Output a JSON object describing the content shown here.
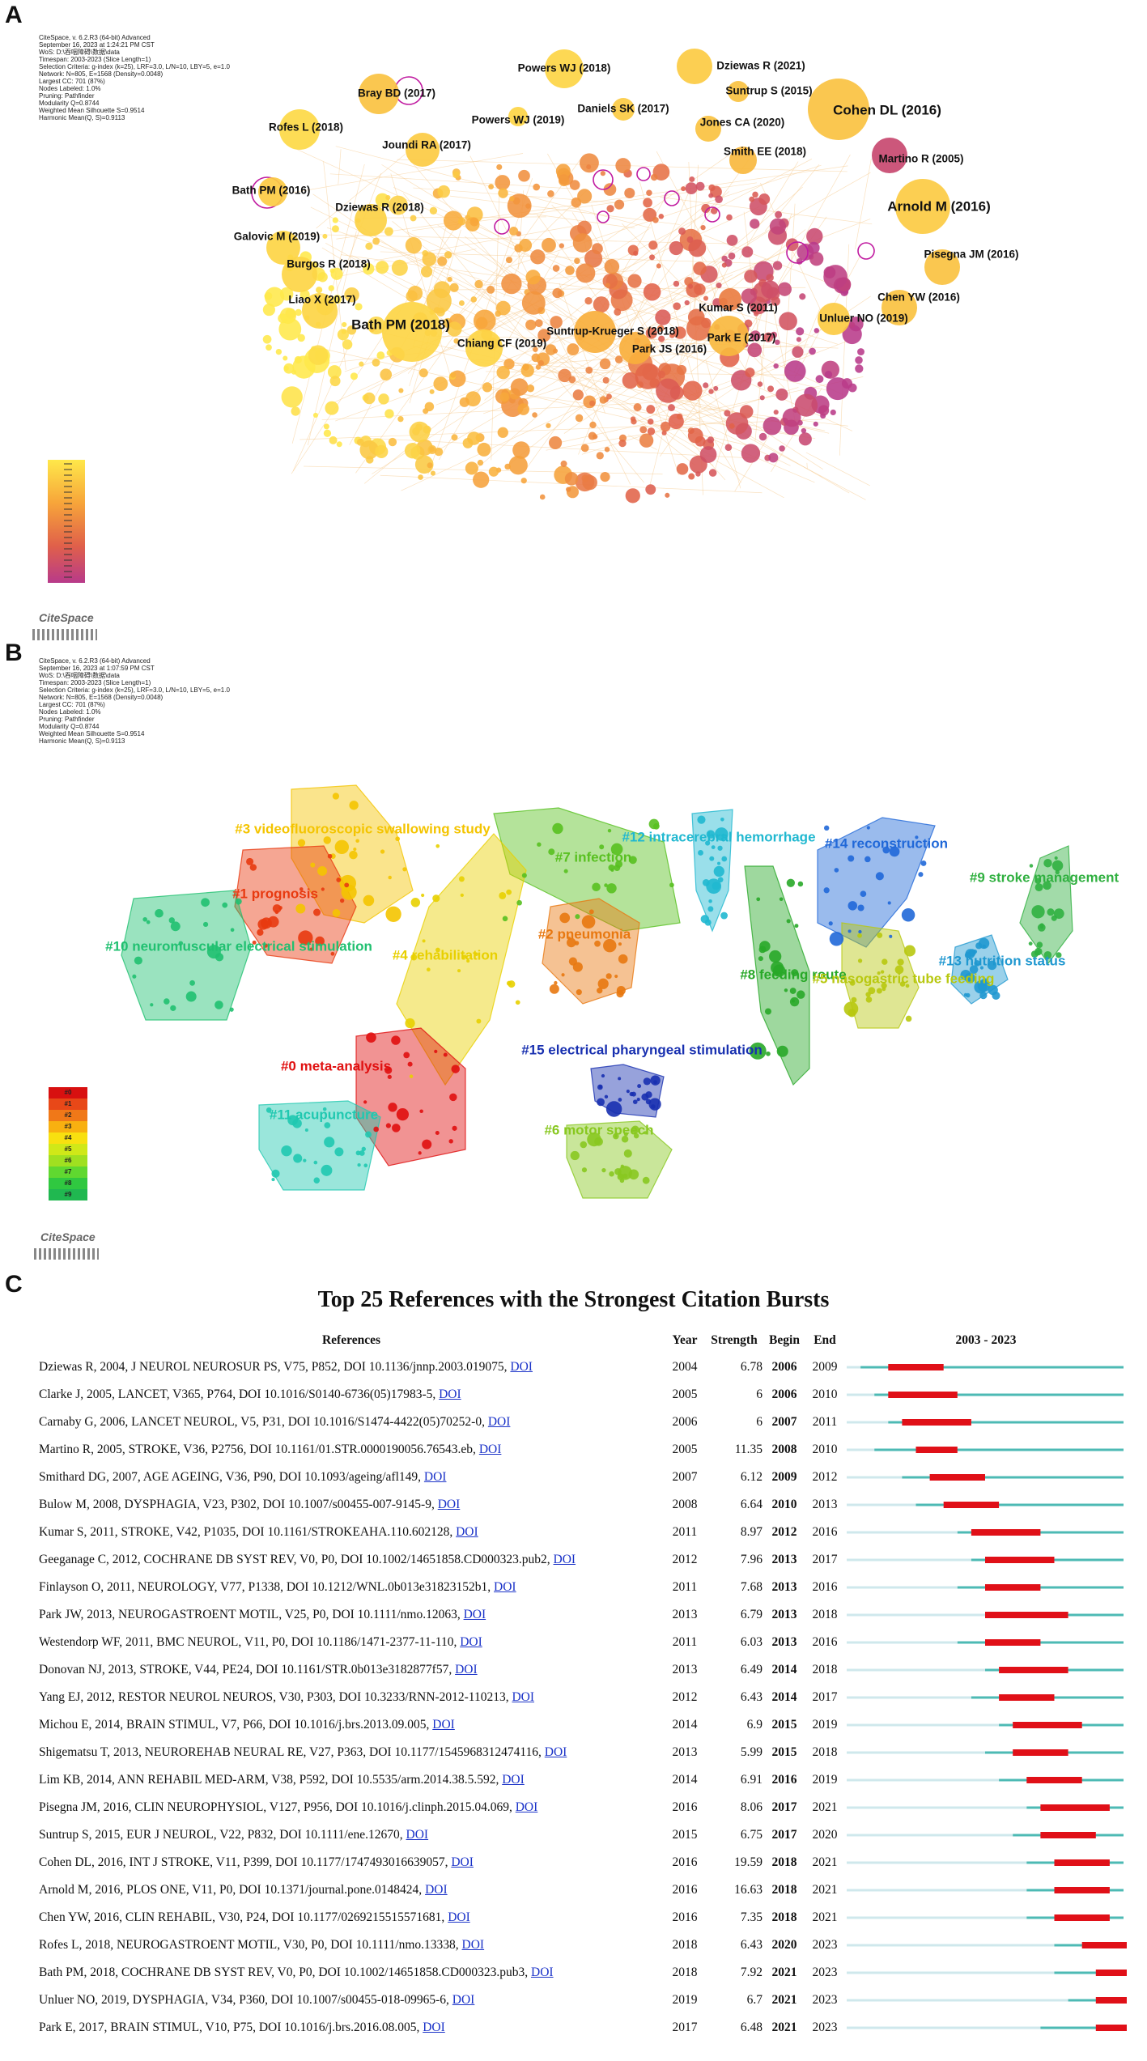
{
  "panel_a": {
    "letter": "A",
    "meta": [
      "CiteSpace, v. 6.2.R3 (64-bit) Advanced",
      "September 16, 2023 at 1:24:21 PM CST",
      "WoS: D:\\吞咽障碍\\数据\\data",
      "Timespan: 2003-2023 (Slice Length=1)",
      "Selection Criteria: g-index (k=25), LRF=3.0, L/N=10, LBY=5, e=1.0",
      "Network: N=805, E=1568 (Density=0.0048)",
      "Largest CC: 701 (87%)",
      "Nodes Labeled: 1.0%",
      "Pruning: Pathfinder",
      "Modularity Q=0.8744",
      "Weighted Mean Silhouette S=0.9514",
      "Harmonic Mean(Q, S)=0.9113"
    ],
    "logo": "CiteSpace",
    "gradient_colors": [
      "#ffe84a",
      "#f7a53a",
      "#e0604a",
      "#b83a8a"
    ],
    "labels": [
      {
        "text": "Dziewas R (2021)",
        "big": false
      },
      {
        "text": "Powers WJ (2018)",
        "big": false
      },
      {
        "text": "Bray BD (2017)",
        "big": false
      },
      {
        "text": "Suntrup S (2015)",
        "big": false
      },
      {
        "text": "Cohen DL (2016)",
        "big": true
      },
      {
        "text": "Daniels SK (2017)",
        "big": false
      },
      {
        "text": "Powers WJ (2019)",
        "big": false
      },
      {
        "text": "Jones CA (2020)",
        "big": false
      },
      {
        "text": "Rofes L (2018)",
        "big": false
      },
      {
        "text": "Joundi RA (2017)",
        "big": false
      },
      {
        "text": "Smith EE (2018)",
        "big": false
      },
      {
        "text": "Martino R (2005)",
        "big": false
      },
      {
        "text": "Bath PM (2016)",
        "big": false
      },
      {
        "text": "Arnold M (2016)",
        "big": true
      },
      {
        "text": "Dziewas R (2018)",
        "big": false
      },
      {
        "text": "Galovic M (2019)",
        "big": false
      },
      {
        "text": "Pisegna JM (2016)",
        "big": false
      },
      {
        "text": "Burgos R (2018)",
        "big": false
      },
      {
        "text": "Liao X (2017)",
        "big": false
      },
      {
        "text": "Chen YW (2016)",
        "big": false
      },
      {
        "text": "Kumar S (2011)",
        "big": false
      },
      {
        "text": "Unluer NO (2019)",
        "big": false
      },
      {
        "text": "Bath PM (2018)",
        "big": true
      },
      {
        "text": "Suntrup-Krueger S (2018)",
        "big": false
      },
      {
        "text": "Park E (2017)",
        "big": false
      },
      {
        "text": "Chiang CF (2019)",
        "big": false
      },
      {
        "text": "Park JS (2016)",
        "big": false
      }
    ]
  },
  "panel_b": {
    "letter": "B",
    "meta": [
      "CiteSpace, v. 6.2.R3 (64-bit) Advanced",
      "September 16, 2023 at 1:07:59 PM CST",
      "WoS: D:\\吞咽障碍\\数据\\data",
      "Timespan: 2003-2023 (Slice Length=1)",
      "Selection Criteria: g-index (k=25), LRF=3.0, L/N=10, LBY=5, e=1.0",
      "Network: N=805, E=1568 (Density=0.0048)",
      "Largest CC: 701 (87%)",
      "Nodes Labeled: 1.0%",
      "Pruning: Pathfinder",
      "Modularity Q=0.8744",
      "Weighted Mean Silhouette S=0.9514",
      "Harmonic Mean(Q, S)=0.9113"
    ],
    "logo": "CiteSpace",
    "clusters": [
      {
        "label": "#3 videofluoroscopic swallowing study",
        "color": "#f4c400"
      },
      {
        "label": "#1 prognosis",
        "color": "#e83a10"
      },
      {
        "label": "#10 neuromuscular electrical stimulation",
        "color": "#20c070"
      },
      {
        "label": "#7 infection",
        "color": "#58c020"
      },
      {
        "label": "#12 intracerebral hemorrhage",
        "color": "#20b8d0"
      },
      {
        "label": "#14 reconstruction",
        "color": "#2068d8"
      },
      {
        "label": "#9 stroke management",
        "color": "#30b040"
      },
      {
        "label": "#4 rehabilitation",
        "color": "#e8d000"
      },
      {
        "label": "#2 pneumonia",
        "color": "#e87810"
      },
      {
        "label": "#8 feeding route",
        "color": "#28a828"
      },
      {
        "label": "#5 nasogastric tube feeding",
        "color": "#b8c810"
      },
      {
        "label": "#13 nutrition status",
        "color": "#2098d0"
      },
      {
        "label": "#15 electrical pharyngeal stimulation",
        "color": "#1830b0"
      },
      {
        "label": "#0 meta-analysis",
        "color": "#e01010"
      },
      {
        "label": "#11 acupuncture",
        "color": "#20c8b0"
      },
      {
        "label": "#6 motor speech",
        "color": "#88c820"
      }
    ],
    "legend_labels": [
      "#0",
      "#1",
      "#2",
      "#3",
      "#4",
      "#5",
      "#6",
      "#7",
      "#8",
      "#9"
    ],
    "legend_colors": [
      "#d81010",
      "#e84818",
      "#f07818",
      "#f8b010",
      "#f8e010",
      "#d0e818",
      "#a0e020",
      "#60d830",
      "#30c840",
      "#20b850"
    ]
  },
  "panel_c": {
    "letter": "C",
    "title": "Top 25 References with the Strongest Citation Bursts",
    "headers": {
      "ref": "References",
      "year": "Year",
      "strength": "Strength",
      "begin": "Begin",
      "end": "End",
      "range": "2003 - 2023"
    },
    "doi_label": "DOI",
    "colors": {
      "base": "#4dbab4",
      "burst": "#e01018",
      "pre": "#cfe8ec"
    },
    "chart_data": {
      "type": "table",
      "title": "Top 25 References with the Strongest Citation Bursts",
      "timeline_start": 2003,
      "timeline_end": 2023,
      "rows": [
        {
          "ref": "Dziewas R, 2004, J NEUROL NEUROSUR PS, V75, P852, DOI 10.1136/jnnp.2003.019075,",
          "year": "2004",
          "strength": "6.78",
          "begin": "2006",
          "end": "2009"
        },
        {
          "ref": "Clarke J, 2005, LANCET, V365, P764, DOI 10.1016/S0140-6736(05)17983-5,",
          "year": "2005",
          "strength": "6",
          "begin": "2006",
          "end": "2010"
        },
        {
          "ref": "Carnaby G, 2006, LANCET NEUROL, V5, P31, DOI 10.1016/S1474-4422(05)70252-0,",
          "year": "2006",
          "strength": "6",
          "begin": "2007",
          "end": "2011"
        },
        {
          "ref": "Martino R, 2005, STROKE, V36, P2756, DOI 10.1161/01.STR.0000190056.76543.eb,",
          "year": "2005",
          "strength": "11.35",
          "begin": "2008",
          "end": "2010"
        },
        {
          "ref": "Smithard DG, 2007, AGE AGEING, V36, P90, DOI 10.1093/ageing/afl149,",
          "year": "2007",
          "strength": "6.12",
          "begin": "2009",
          "end": "2012"
        },
        {
          "ref": "Bulow M, 2008, DYSPHAGIA, V23, P302, DOI 10.1007/s00455-007-9145-9,",
          "year": "2008",
          "strength": "6.64",
          "begin": "2010",
          "end": "2013"
        },
        {
          "ref": "Kumar S, 2011, STROKE, V42, P1035, DOI 10.1161/STROKEAHA.110.602128,",
          "year": "2011",
          "strength": "8.97",
          "begin": "2012",
          "end": "2016"
        },
        {
          "ref": "Geeganage C, 2012, COCHRANE DB SYST REV, V0, P0, DOI 10.1002/14651858.CD000323.pub2,",
          "year": "2012",
          "strength": "7.96",
          "begin": "2013",
          "end": "2017"
        },
        {
          "ref": "Finlayson O, 2011, NEUROLOGY, V77, P1338, DOI 10.1212/WNL.0b013e31823152b1,",
          "year": "2011",
          "strength": "7.68",
          "begin": "2013",
          "end": "2016"
        },
        {
          "ref": "Park JW, 2013, NEUROGASTROENT MOTIL, V25, P0, DOI 10.1111/nmo.12063,",
          "year": "2013",
          "strength": "6.79",
          "begin": "2013",
          "end": "2018"
        },
        {
          "ref": "Westendorp WF, 2011, BMC NEUROL, V11, P0, DOI 10.1186/1471-2377-11-110,",
          "year": "2011",
          "strength": "6.03",
          "begin": "2013",
          "end": "2016"
        },
        {
          "ref": "Donovan NJ, 2013, STROKE, V44, PE24, DOI 10.1161/STR.0b013e3182877f57,",
          "year": "2013",
          "strength": "6.49",
          "begin": "2014",
          "end": "2018"
        },
        {
          "ref": "Yang EJ, 2012, RESTOR NEUROL NEUROS, V30, P303, DOI 10.3233/RNN-2012-110213,",
          "year": "2012",
          "strength": "6.43",
          "begin": "2014",
          "end": "2017"
        },
        {
          "ref": "Michou E, 2014, BRAIN STIMUL, V7, P66, DOI 10.1016/j.brs.2013.09.005,",
          "year": "2014",
          "strength": "6.9",
          "begin": "2015",
          "end": "2019"
        },
        {
          "ref": "Shigematsu T, 2013, NEUROREHAB NEURAL RE, V27, P363, DOI 10.1177/1545968312474116,",
          "year": "2013",
          "strength": "5.99",
          "begin": "2015",
          "end": "2018"
        },
        {
          "ref": "Lim KB, 2014, ANN REHABIL MED-ARM, V38, P592, DOI 10.5535/arm.2014.38.5.592,",
          "year": "2014",
          "strength": "6.91",
          "begin": "2016",
          "end": "2019"
        },
        {
          "ref": "Pisegna JM, 2016, CLIN NEUROPHYSIOL, V127, P956, DOI 10.1016/j.clinph.2015.04.069,",
          "year": "2016",
          "strength": "8.06",
          "begin": "2017",
          "end": "2021"
        },
        {
          "ref": "Suntrup S, 2015, EUR J NEUROL, V22, P832, DOI 10.1111/ene.12670,",
          "year": "2015",
          "strength": "6.75",
          "begin": "2017",
          "end": "2020"
        },
        {
          "ref": "Cohen DL, 2016, INT J STROKE, V11, P399, DOI 10.1177/1747493016639057,",
          "year": "2016",
          "strength": "19.59",
          "begin": "2018",
          "end": "2021"
        },
        {
          "ref": "Arnold M, 2016, PLOS ONE, V11, P0, DOI 10.1371/journal.pone.0148424,",
          "year": "2016",
          "strength": "16.63",
          "begin": "2018",
          "end": "2021"
        },
        {
          "ref": "Chen YW, 2016, CLIN REHABIL, V30, P24, DOI 10.1177/0269215515571681,",
          "year": "2016",
          "strength": "7.35",
          "begin": "2018",
          "end": "2021"
        },
        {
          "ref": "Rofes L, 2018, NEUROGASTROENT MOTIL, V30, P0, DOI 10.1111/nmo.13338,",
          "year": "2018",
          "strength": "6.43",
          "begin": "2020",
          "end": "2023"
        },
        {
          "ref": "Bath PM, 2018, COCHRANE DB SYST REV, V0, P0, DOI 10.1002/14651858.CD000323.pub3,",
          "year": "2018",
          "strength": "7.92",
          "begin": "2021",
          "end": "2023"
        },
        {
          "ref": "Unluer NO, 2019, DYSPHAGIA, V34, P360, DOI 10.1007/s00455-018-09965-6,",
          "year": "2019",
          "strength": "6.7",
          "begin": "2021",
          "end": "2023"
        },
        {
          "ref": "Park E, 2017, BRAIN STIMUL, V10, P75, DOI 10.1016/j.brs.2016.08.005,",
          "year": "2017",
          "strength": "6.48",
          "begin": "2021",
          "end": "2023"
        }
      ]
    }
  }
}
